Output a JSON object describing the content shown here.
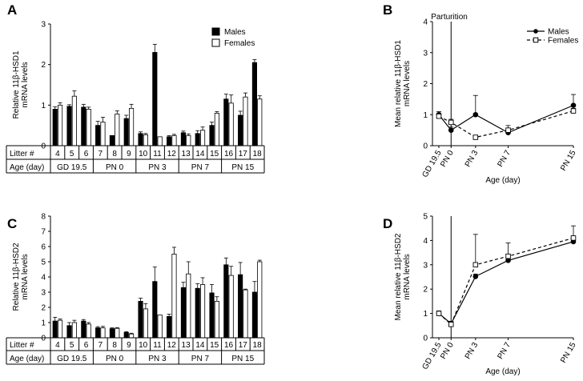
{
  "chart_data": [
    {
      "type": "bar",
      "panel": "A",
      "ylabel": [
        "Relative 11β-HSD1",
        "mRNA levels"
      ],
      "ylim": [
        0,
        3
      ],
      "yticks": [
        0,
        1,
        2,
        3
      ],
      "table_row1_label": "Litter #",
      "table_row2_label": "Age (day)",
      "categories": [
        "4",
        "5",
        "6",
        "7",
        "8",
        "9",
        "10",
        "11",
        "12",
        "13",
        "14",
        "15",
        "16",
        "17",
        "18"
      ],
      "age_groups": [
        {
          "label": "GD 19.5",
          "span": [
            0,
            2
          ]
        },
        {
          "label": "PN 0",
          "span": [
            3,
            5
          ]
        },
        {
          "label": "PN 3",
          "span": [
            6,
            8
          ]
        },
        {
          "label": "PN 7",
          "span": [
            9,
            11
          ]
        },
        {
          "label": "PN 15",
          "span": [
            12,
            14
          ]
        }
      ],
      "legend": {
        "males": "Males",
        "females": "Females",
        "placement": "top-right"
      },
      "series": [
        {
          "name": "Males",
          "color": "#000000",
          "values": [
            0.9,
            0.97,
            0.95,
            0.5,
            0.25,
            0.67,
            0.3,
            2.3,
            0.22,
            0.32,
            0.3,
            0.5,
            1.15,
            0.75,
            2.05
          ],
          "errors": [
            0.06,
            0.04,
            0.07,
            0.1,
            0.0,
            0.08,
            0.04,
            0.2,
            0.03,
            0.04,
            0.07,
            0.08,
            0.12,
            0.1,
            0.07
          ]
        },
        {
          "name": "Females",
          "color": "#ffffff",
          "values": [
            1.0,
            1.22,
            0.9,
            0.58,
            0.78,
            0.92,
            0.27,
            0.22,
            0.25,
            0.25,
            0.38,
            0.8,
            1.05,
            1.2,
            1.15
          ],
          "errors": [
            0.06,
            0.13,
            0.05,
            0.12,
            0.08,
            0.1,
            0.03,
            0.0,
            0.03,
            0.04,
            0.08,
            0.04,
            0.2,
            0.1,
            0.08
          ]
        }
      ]
    },
    {
      "type": "line",
      "panel": "B",
      "ylabel": [
        "Mean relative 11β-HSD1",
        "mRNA levels"
      ],
      "xlabel": "Age (day)",
      "ylim": [
        0,
        4
      ],
      "yticks": [
        0,
        1,
        2,
        3,
        4
      ],
      "x": [
        "GD 19.5",
        "PN 0",
        "PN 3",
        "PN 7",
        "PN 15"
      ],
      "x_days": [
        -1.5,
        0,
        3,
        7,
        15
      ],
      "annotation": "Parturition",
      "legend": {
        "placement": "top-right"
      },
      "series": [
        {
          "name": "Males",
          "marker": "filled-circle",
          "line": "solid",
          "values": [
            1.0,
            0.5,
            1.0,
            0.42,
            1.3
          ],
          "errors": [
            0.1,
            0.1,
            0.62,
            0.1,
            0.35
          ]
        },
        {
          "name": "Females",
          "marker": "open-square",
          "line": "dashed",
          "values": [
            0.95,
            0.75,
            0.27,
            0.5,
            1.12
          ],
          "errors": [
            0.1,
            0.1,
            0.05,
            0.15,
            0.08
          ]
        }
      ]
    },
    {
      "type": "bar",
      "panel": "C",
      "ylabel": [
        "Relative 11β-HSD2",
        "mRNA levels"
      ],
      "ylim": [
        0,
        8
      ],
      "yticks": [
        0,
        1,
        2,
        3,
        4,
        5,
        6,
        7,
        8
      ],
      "table_row1_label": "Litter #",
      "table_row2_label": "Age (day)",
      "categories": [
        "4",
        "5",
        "6",
        "7",
        "8",
        "9",
        "10",
        "11",
        "12",
        "13",
        "14",
        "15",
        "16",
        "17",
        "18"
      ],
      "age_groups": [
        {
          "label": "GD 19.5",
          "span": [
            0,
            2
          ]
        },
        {
          "label": "PN 0",
          "span": [
            3,
            5
          ]
        },
        {
          "label": "PN 3",
          "span": [
            6,
            8
          ]
        },
        {
          "label": "PN 7",
          "span": [
            9,
            11
          ]
        },
        {
          "label": "PN 15",
          "span": [
            12,
            14
          ]
        }
      ],
      "series": [
        {
          "name": "Males",
          "color": "#000000",
          "values": [
            1.1,
            0.8,
            1.1,
            0.65,
            0.6,
            0.35,
            2.4,
            3.7,
            1.4,
            3.3,
            3.25,
            2.95,
            4.8,
            4.15,
            3.0
          ],
          "errors": [
            0.25,
            0.2,
            0.1,
            0.08,
            0.05,
            0.05,
            0.2,
            0.95,
            0.15,
            0.35,
            0.3,
            0.55,
            0.45,
            0.8,
            0.7
          ]
        },
        {
          "name": "Females",
          "color": "#ffffff",
          "values": [
            1.15,
            1.0,
            0.9,
            0.65,
            0.62,
            0.25,
            1.9,
            1.5,
            5.5,
            4.2,
            3.5,
            2.4,
            4.1,
            3.15,
            5.0
          ],
          "errors": [
            0.08,
            0.15,
            0.1,
            0.1,
            0.05,
            0.05,
            0.35,
            0.0,
            0.45,
            0.8,
            0.45,
            0.3,
            0.6,
            0.05,
            0.1
          ]
        }
      ]
    },
    {
      "type": "line",
      "panel": "D",
      "ylabel": [
        "Mean relative 11β-HSD2",
        "mRNA levels"
      ],
      "xlabel": "Age (day)",
      "ylim": [
        0,
        5
      ],
      "yticks": [
        0,
        1,
        2,
        3,
        4,
        5
      ],
      "x": [
        "GD 19.5",
        "PN 0",
        "PN 3",
        "PN 7",
        "PN 15"
      ],
      "x_days": [
        -1.5,
        0,
        3,
        7,
        15
      ],
      "series": [
        {
          "name": "Males",
          "marker": "filled-circle",
          "line": "solid",
          "values": [
            1.0,
            0.58,
            2.52,
            3.18,
            3.95
          ],
          "errors": [
            0.1,
            0.1,
            0.1,
            0.1,
            0.1
          ]
        },
        {
          "name": "Females",
          "marker": "open-square",
          "line": "dashed",
          "values": [
            1.0,
            0.55,
            3.0,
            3.35,
            4.1
          ],
          "errors": [
            0.1,
            0.05,
            1.25,
            0.55,
            0.5
          ]
        }
      ]
    }
  ]
}
